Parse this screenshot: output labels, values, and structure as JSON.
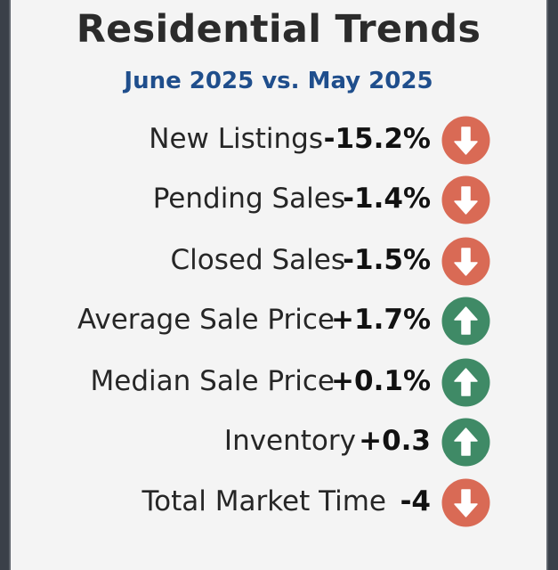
{
  "header": {
    "title": "Residential Trends",
    "subtitle": "June 2025 vs. May 2025"
  },
  "colors": {
    "down": "#d96a55",
    "up": "#3f8a66",
    "subtitle": "#1f4e8c"
  },
  "metrics": [
    {
      "label": "New Listings",
      "value": "-15.2%",
      "direction": "down",
      "icon": "arrow-down-icon"
    },
    {
      "label": "Pending Sales",
      "value": "-1.4%",
      "direction": "down",
      "icon": "arrow-down-icon"
    },
    {
      "label": "Closed Sales",
      "value": "-1.5%",
      "direction": "down",
      "icon": "arrow-down-icon"
    },
    {
      "label": "Average Sale Price",
      "value": "+1.7%",
      "direction": "up",
      "icon": "arrow-up-icon"
    },
    {
      "label": "Median Sale Price",
      "value": "+0.1%",
      "direction": "up",
      "icon": "arrow-up-icon"
    },
    {
      "label": "Inventory",
      "value": "+0.3",
      "direction": "up",
      "icon": "arrow-up-icon"
    },
    {
      "label": "Total Market Time",
      "value": "-4",
      "direction": "down",
      "icon": "arrow-down-icon"
    }
  ]
}
